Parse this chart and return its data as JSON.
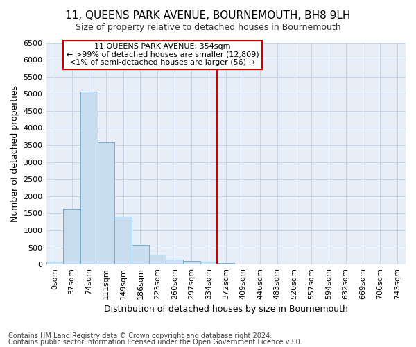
{
  "title": "11, QUEENS PARK AVENUE, BOURNEMOUTH, BH8 9LH",
  "subtitle": "Size of property relative to detached houses in Bournemouth",
  "xlabel": "Distribution of detached houses by size in Bournemouth",
  "ylabel": "Number of detached properties",
  "footnote1": "Contains HM Land Registry data © Crown copyright and database right 2024.",
  "footnote2": "Contains public sector information licensed under the Open Government Licence v3.0.",
  "bar_labels": [
    "0sqm",
    "37sqm",
    "74sqm",
    "111sqm",
    "149sqm",
    "186sqm",
    "223sqm",
    "260sqm",
    "297sqm",
    "334sqm",
    "372sqm",
    "409sqm",
    "446sqm",
    "483sqm",
    "520sqm",
    "557sqm",
    "594sqm",
    "632sqm",
    "669sqm",
    "706sqm",
    "743sqm"
  ],
  "bar_values": [
    75,
    1625,
    5075,
    3575,
    1400,
    575,
    290,
    150,
    100,
    75,
    50,
    0,
    0,
    0,
    0,
    0,
    0,
    0,
    0,
    0,
    0
  ],
  "bar_color": "#c8ddf0",
  "bar_edge_color": "#7aaecc",
  "ylim": [
    0,
    6500
  ],
  "yticks": [
    0,
    500,
    1000,
    1500,
    2000,
    2500,
    3000,
    3500,
    4000,
    4500,
    5000,
    5500,
    6000,
    6500
  ],
  "vline_x_index": 10,
  "property_label": "11 QUEENS PARK AVENUE: 354sqm",
  "annotation_line1": "← >99% of detached houses are smaller (12,809)",
  "annotation_line2": "<1% of semi-detached houses are larger (56) →",
  "vline_color": "#cc0000",
  "annotation_box_edge": "#cc0000",
  "annotation_box_face": "#ffffff",
  "grid_color": "#c8d4e8",
  "background_color": "#e8eef8",
  "title_fontsize": 11,
  "subtitle_fontsize": 9,
  "tick_fontsize": 8,
  "xlabel_fontsize": 9,
  "ylabel_fontsize": 9,
  "footnote_fontsize": 7
}
